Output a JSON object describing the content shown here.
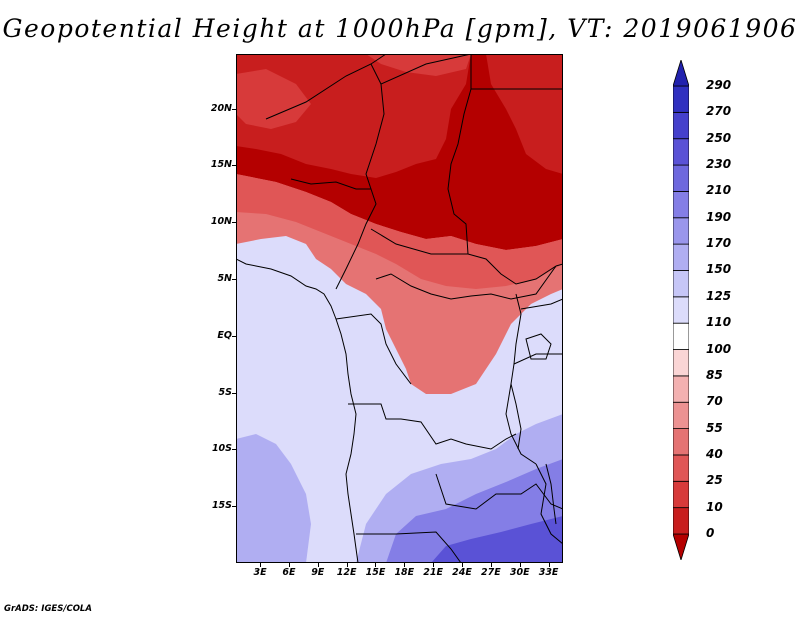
{
  "title": "Geopotential Height at 1000hPa [gpm], VT: 2019061906",
  "credit": "GrADS: IGES/COLA",
  "lat_labels": [
    {
      "value": 20,
      "text": "20N"
    },
    {
      "value": 15,
      "text": "15N"
    },
    {
      "value": 10,
      "text": "10N"
    },
    {
      "value": 5,
      "text": "5N"
    },
    {
      "value": 0,
      "text": "EQ"
    },
    {
      "value": -5,
      "text": "5S"
    },
    {
      "value": -10,
      "text": "10S"
    },
    {
      "value": -15,
      "text": "15S"
    }
  ],
  "lon_labels": [
    {
      "value": 3,
      "text": "3E"
    },
    {
      "value": 6,
      "text": "6E"
    },
    {
      "value": 9,
      "text": "9E"
    },
    {
      "value": 12,
      "text": "12E"
    },
    {
      "value": 15,
      "text": "15E"
    },
    {
      "value": 18,
      "text": "18E"
    },
    {
      "value": 21,
      "text": "21E"
    },
    {
      "value": 24,
      "text": "24E"
    },
    {
      "value": 27,
      "text": "27E"
    },
    {
      "value": 30,
      "text": "30E"
    },
    {
      "value": 33,
      "text": "33E"
    }
  ],
  "extent": {
    "lon_min": 0.5,
    "lon_max": 34.5,
    "lat_min": -20,
    "lat_max": 24.8
  },
  "colorbar": {
    "levels": [
      "0",
      "10",
      "25",
      "40",
      "55",
      "70",
      "85",
      "100",
      "110",
      "125",
      "150",
      "170",
      "190",
      "210",
      "230",
      "250",
      "270",
      "290"
    ],
    "colors": [
      "#b40000",
      "#c81e1e",
      "#d73a3a",
      "#e05656",
      "#e57373",
      "#ec9292",
      "#f3b1b1",
      "#fad5d5",
      "#ffffff",
      "#dcdcfb",
      "#c6c6f7",
      "#b0aef2",
      "#9a96ec",
      "#847ee6",
      "#6e68de",
      "#5a52d6",
      "#4540cc",
      "#3030c0",
      "#2222ae"
    ]
  },
  "map": {
    "fields": [
      {
        "name": "north-high",
        "color": "#f3b1b1"
      },
      {
        "name": "sahara-hot",
        "color": "#ec9292"
      },
      {
        "name": "niger-hot",
        "color": "#e57373"
      },
      {
        "name": "sahel-band",
        "color": "#fad5d5"
      },
      {
        "name": "central-neutral",
        "color": "#ffffff"
      },
      {
        "name": "gulf-low",
        "color": "#dcdcfb"
      },
      {
        "name": "angola-low",
        "color": "#b0aef2"
      },
      {
        "name": "southern-low",
        "color": "#847ee6"
      },
      {
        "name": "deep-south-low",
        "color": "#5a52d6"
      }
    ]
  }
}
